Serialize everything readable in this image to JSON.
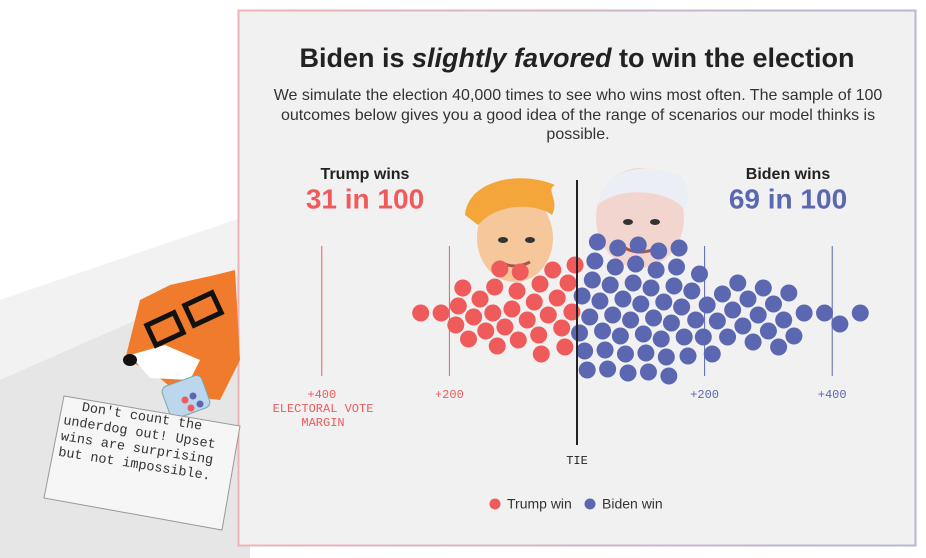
{
  "chart_data": {
    "type": "beeswarm",
    "title": {
      "prefix": "Biden is ",
      "emphasis": "slightly favored",
      "suffix": " to win the election"
    },
    "subtitle": "We simulate the election 40,000 times to see who wins most often. The sample of 100 outcomes below gives you a good idea of the range of scenarios our model thinks is possible.",
    "left_heading": "Trump wins",
    "left_count": "31 in 100",
    "right_heading": "Biden wins",
    "right_count": "69 in 100",
    "x_label": "ELECTORAL VOTE MARGIN",
    "center_label": "TIE",
    "xlim": [
      -500,
      500
    ],
    "xticks": [
      {
        "value": -400,
        "label": "+400"
      },
      {
        "value": -200,
        "label": "+200"
      },
      {
        "value": 200,
        "label": "+200"
      },
      {
        "value": 400,
        "label": "+400"
      }
    ],
    "series": [
      {
        "name": "Trump win",
        "color": "#ef5a5a",
        "values": [
          -245,
          -213,
          -190,
          -186,
          -179,
          -170,
          -162,
          -152,
          -143,
          -132,
          -129,
          -125,
          -121,
          -113,
          -102,
          -94,
          -92,
          -89,
          -78,
          -67,
          -60,
          -58,
          -56,
          -45,
          -38,
          -31,
          -24,
          -19,
          -14,
          -8,
          -3
        ]
      },
      {
        "name": "Biden win",
        "color": "#5b67b0",
        "values": [
          4,
          8,
          12,
          16,
          20,
          24,
          28,
          32,
          36,
          40,
          44,
          48,
          52,
          56,
          60,
          64,
          68,
          72,
          76,
          80,
          84,
          88,
          92,
          96,
          100,
          104,
          108,
          112,
          116,
          120,
          124,
          128,
          132,
          136,
          140,
          144,
          148,
          152,
          156,
          160,
          164,
          168,
          174,
          180,
          186,
          192,
          198,
          204,
          212,
          220,
          228,
          236,
          244,
          252,
          260,
          268,
          276,
          284,
          292,
          300,
          308,
          316,
          324,
          332,
          340,
          356,
          388,
          412,
          444
        ]
      }
    ],
    "note": "Don't count the underdog out! Upset wins are surprising but not impossible."
  }
}
